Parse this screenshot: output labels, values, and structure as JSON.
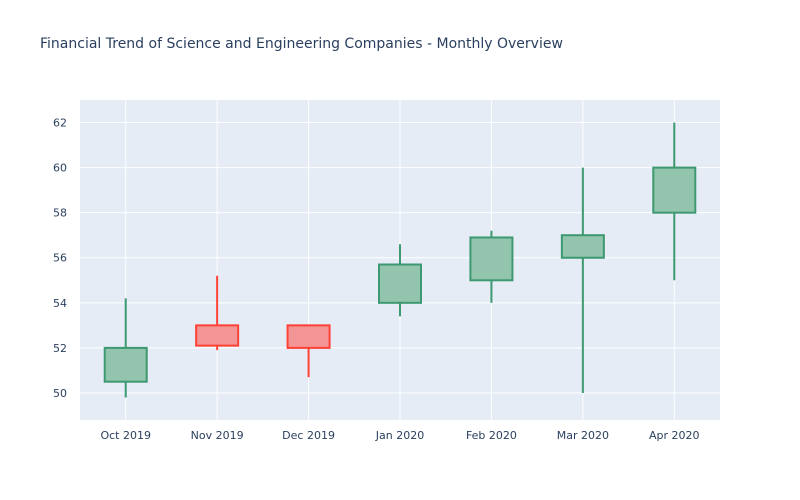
{
  "chart_data": {
    "type": "candlestick",
    "title": "Financial Trend of Science and Engineering Companies - Monthly Overview",
    "xlabel": "",
    "ylabel": "",
    "categories": [
      "Oct 2019",
      "Nov 2019",
      "Dec 2019",
      "Jan 2020",
      "Feb 2020",
      "Mar 2020",
      "Apr 2020"
    ],
    "series": [
      {
        "ohlc": [
          {
            "x": "Oct 2019",
            "open": 50.5,
            "high": 54.2,
            "low": 49.8,
            "close": 52.0
          },
          {
            "x": "Nov 2019",
            "open": 53.0,
            "high": 55.2,
            "low": 51.9,
            "close": 52.1
          },
          {
            "x": "Dec 2019",
            "open": 53.0,
            "high": 53.0,
            "low": 50.7,
            "close": 52.0
          },
          {
            "x": "Jan 2020",
            "open": 54.0,
            "high": 56.6,
            "low": 53.4,
            "close": 55.7
          },
          {
            "x": "Feb 2020",
            "open": 55.0,
            "high": 57.2,
            "low": 54.0,
            "close": 56.9
          },
          {
            "x": "Mar 2020",
            "open": 56.0,
            "high": 60.0,
            "low": 50.0,
            "close": 57.0
          },
          {
            "x": "Apr 2020",
            "open": 58.0,
            "high": 62.0,
            "low": 55.0,
            "close": 60.0
          }
        ]
      }
    ],
    "y_ticks": [
      "50",
      "52",
      "54",
      "56",
      "58",
      "60",
      "62"
    ],
    "ylim": [
      48.8,
      63.0
    ],
    "grid": true,
    "legend": "none",
    "colors": {
      "increasing_line": "#3d9970",
      "increasing_fill": "#93c5ae",
      "decreasing_line": "#ff4136",
      "decreasing_fill": "#f39595",
      "plot_background": "#e5ecf6",
      "grid": "#ffffff",
      "text": "#2a3f5f"
    }
  }
}
